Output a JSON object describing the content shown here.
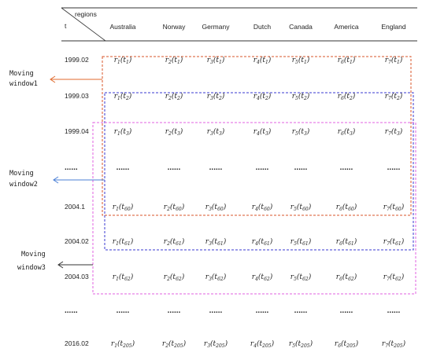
{
  "header": {
    "regions_label": "regions",
    "t_label": "t",
    "columns": [
      "Australia",
      "Norway",
      "Germany",
      "Dutch",
      "Canada",
      "America",
      "England"
    ]
  },
  "rows": [
    {
      "label": "1999.02",
      "t_sub": "1"
    },
    {
      "label": "1999.03",
      "t_sub": "2"
    },
    {
      "label": "1999.04",
      "t_sub": "3"
    },
    {
      "label": "......",
      "t_sub": ""
    },
    {
      "label": "2004.1",
      "t_sub": "60"
    },
    {
      "label": "2004.02",
      "t_sub": "61"
    },
    {
      "label": "2004.03",
      "t_sub": "62"
    },
    {
      "label": "......",
      "t_sub": ""
    },
    {
      "label": "2016.02",
      "t_sub": "205"
    }
  ],
  "cell_symbol": "r",
  "cell_var": "t",
  "ellipsis": "......",
  "windows": [
    {
      "line1": "Moving",
      "line2": "window1",
      "color": "#e06a2c"
    },
    {
      "line1": "Moving",
      "line2": "window2",
      "color": "#4a7fd6"
    },
    {
      "line1": "Moving",
      "line2": "window3",
      "color": "#333333"
    }
  ],
  "box_colors": {
    "window1": "#d9542a",
    "window2": "#3a3ad0",
    "window3": "#e060e0"
  }
}
